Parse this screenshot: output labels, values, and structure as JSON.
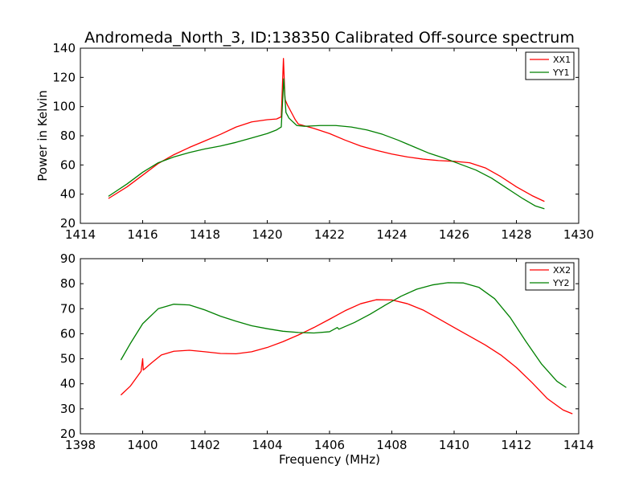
{
  "title": "Andromeda_North_3, ID:138350 Calibrated Off-source spectrum",
  "chart_data": [
    {
      "type": "line",
      "ylabel": "Power in Kelvin",
      "xlabel": "",
      "xlim": [
        1414,
        1430
      ],
      "ylim": [
        20,
        140
      ],
      "xticks": [
        1414,
        1416,
        1418,
        1420,
        1422,
        1424,
        1426,
        1428,
        1430
      ],
      "yticks": [
        20,
        40,
        60,
        80,
        100,
        120,
        140
      ],
      "legend_placement": "top-right",
      "grid": false,
      "series": [
        {
          "name": "XX1",
          "color": "#ff0000",
          "points": [
            [
              1414.9,
              37
            ],
            [
              1415.5,
              45
            ],
            [
              1416.0,
              53
            ],
            [
              1416.5,
              61
            ],
            [
              1417.0,
              67
            ],
            [
              1417.5,
              72
            ],
            [
              1418.0,
              76.5
            ],
            [
              1418.5,
              81
            ],
            [
              1419.0,
              86
            ],
            [
              1419.5,
              89.5
            ],
            [
              1420.0,
              91
            ],
            [
              1420.3,
              91.5
            ],
            [
              1420.45,
              93
            ],
            [
              1420.52,
              133
            ],
            [
              1420.57,
              105
            ],
            [
              1420.65,
              101
            ],
            [
              1420.8,
              95
            ],
            [
              1420.9,
              91
            ],
            [
              1421.0,
              88
            ],
            [
              1421.5,
              85
            ],
            [
              1422.0,
              81.5
            ],
            [
              1422.5,
              77
            ],
            [
              1423.0,
              73
            ],
            [
              1423.5,
              70
            ],
            [
              1424.0,
              67.5
            ],
            [
              1424.5,
              65.5
            ],
            [
              1425.0,
              64
            ],
            [
              1425.5,
              63
            ],
            [
              1426.0,
              62.5
            ],
            [
              1426.5,
              61.5
            ],
            [
              1427.0,
              58
            ],
            [
              1427.5,
              52
            ],
            [
              1428.0,
              45
            ],
            [
              1428.5,
              39
            ],
            [
              1428.9,
              35
            ]
          ]
        },
        {
          "name": "YY1",
          "color": "#008000",
          "points": [
            [
              1414.9,
              38.5
            ],
            [
              1415.5,
              47
            ],
            [
              1416.0,
              55
            ],
            [
              1416.5,
              61.5
            ],
            [
              1417.0,
              65.5
            ],
            [
              1417.5,
              68.5
            ],
            [
              1418.0,
              71
            ],
            [
              1418.5,
              73
            ],
            [
              1419.0,
              75.5
            ],
            [
              1419.5,
              78.5
            ],
            [
              1420.0,
              81.5
            ],
            [
              1420.3,
              84
            ],
            [
              1420.45,
              86
            ],
            [
              1420.53,
              119
            ],
            [
              1420.6,
              96
            ],
            [
              1420.7,
              92
            ],
            [
              1420.8,
              90
            ],
            [
              1420.95,
              87
            ],
            [
              1421.2,
              86.5
            ],
            [
              1421.7,
              87
            ],
            [
              1422.2,
              87
            ],
            [
              1422.7,
              86
            ],
            [
              1423.2,
              84
            ],
            [
              1423.7,
              81
            ],
            [
              1424.2,
              77
            ],
            [
              1424.7,
              72.5
            ],
            [
              1425.2,
              68
            ],
            [
              1425.7,
              64.5
            ],
            [
              1426.2,
              60.5
            ],
            [
              1426.7,
              56.5
            ],
            [
              1427.2,
              51
            ],
            [
              1427.7,
              44
            ],
            [
              1428.2,
              37
            ],
            [
              1428.6,
              32
            ],
            [
              1428.9,
              30
            ]
          ]
        }
      ]
    },
    {
      "type": "line",
      "ylabel": "",
      "xlabel": "Frequency (MHz)",
      "xlim": [
        1398,
        1414
      ],
      "ylim": [
        20,
        90
      ],
      "xticks": [
        1398,
        1400,
        1402,
        1404,
        1406,
        1408,
        1410,
        1412,
        1414
      ],
      "yticks": [
        20,
        30,
        40,
        50,
        60,
        70,
        80,
        90
      ],
      "legend_placement": "top-right",
      "grid": false,
      "series": [
        {
          "name": "XX2",
          "color": "#ff0000",
          "points": [
            [
              1399.3,
              35.5
            ],
            [
              1399.6,
              39
            ],
            [
              1399.95,
              45
            ],
            [
              1400.0,
              50
            ],
            [
              1400.02,
              45.5
            ],
            [
              1400.3,
              48.5
            ],
            [
              1400.6,
              51.5
            ],
            [
              1401.0,
              53
            ],
            [
              1401.5,
              53.4
            ],
            [
              1402.0,
              52.8
            ],
            [
              1402.5,
              52.1
            ],
            [
              1403.0,
              52
            ],
            [
              1403.5,
              52.8
            ],
            [
              1404.0,
              54.5
            ],
            [
              1404.5,
              56.8
            ],
            [
              1405.0,
              59.5
            ],
            [
              1405.5,
              62.5
            ],
            [
              1406.0,
              65.8
            ],
            [
              1406.25,
              67.5
            ],
            [
              1406.5,
              69.2
            ],
            [
              1407.0,
              72
            ],
            [
              1407.5,
              73.6
            ],
            [
              1408.0,
              73.5
            ],
            [
              1408.5,
              72
            ],
            [
              1409.0,
              69.5
            ],
            [
              1409.5,
              66
            ],
            [
              1410.0,
              62.5
            ],
            [
              1410.5,
              59
            ],
            [
              1411.0,
              55.5
            ],
            [
              1411.5,
              51.5
            ],
            [
              1412.0,
              46.5
            ],
            [
              1412.5,
              40.5
            ],
            [
              1413.0,
              34
            ],
            [
              1413.5,
              29.5
            ],
            [
              1413.8,
              28
            ]
          ]
        },
        {
          "name": "YY2",
          "color": "#008000",
          "points": [
            [
              1399.3,
              49.5
            ],
            [
              1399.6,
              56
            ],
            [
              1400.0,
              64
            ],
            [
              1400.5,
              70
            ],
            [
              1401.0,
              71.8
            ],
            [
              1401.5,
              71.5
            ],
            [
              1402.0,
              69.5
            ],
            [
              1402.5,
              67
            ],
            [
              1403.0,
              65
            ],
            [
              1403.5,
              63.2
            ],
            [
              1404.0,
              62
            ],
            [
              1404.5,
              61
            ],
            [
              1405.0,
              60.5
            ],
            [
              1405.5,
              60.3
            ],
            [
              1406.0,
              60.8
            ],
            [
              1406.25,
              62.5
            ],
            [
              1406.3,
              61.8
            ],
            [
              1406.8,
              64.5
            ],
            [
              1407.3,
              67.8
            ],
            [
              1407.8,
              71.5
            ],
            [
              1408.3,
              75
            ],
            [
              1408.8,
              77.8
            ],
            [
              1409.3,
              79.5
            ],
            [
              1409.8,
              80.4
            ],
            [
              1410.3,
              80.3
            ],
            [
              1410.8,
              78.5
            ],
            [
              1411.3,
              74
            ],
            [
              1411.8,
              66.5
            ],
            [
              1412.3,
              57
            ],
            [
              1412.8,
              48
            ],
            [
              1413.3,
              41
            ],
            [
              1413.6,
              38.5
            ]
          ]
        }
      ]
    }
  ]
}
